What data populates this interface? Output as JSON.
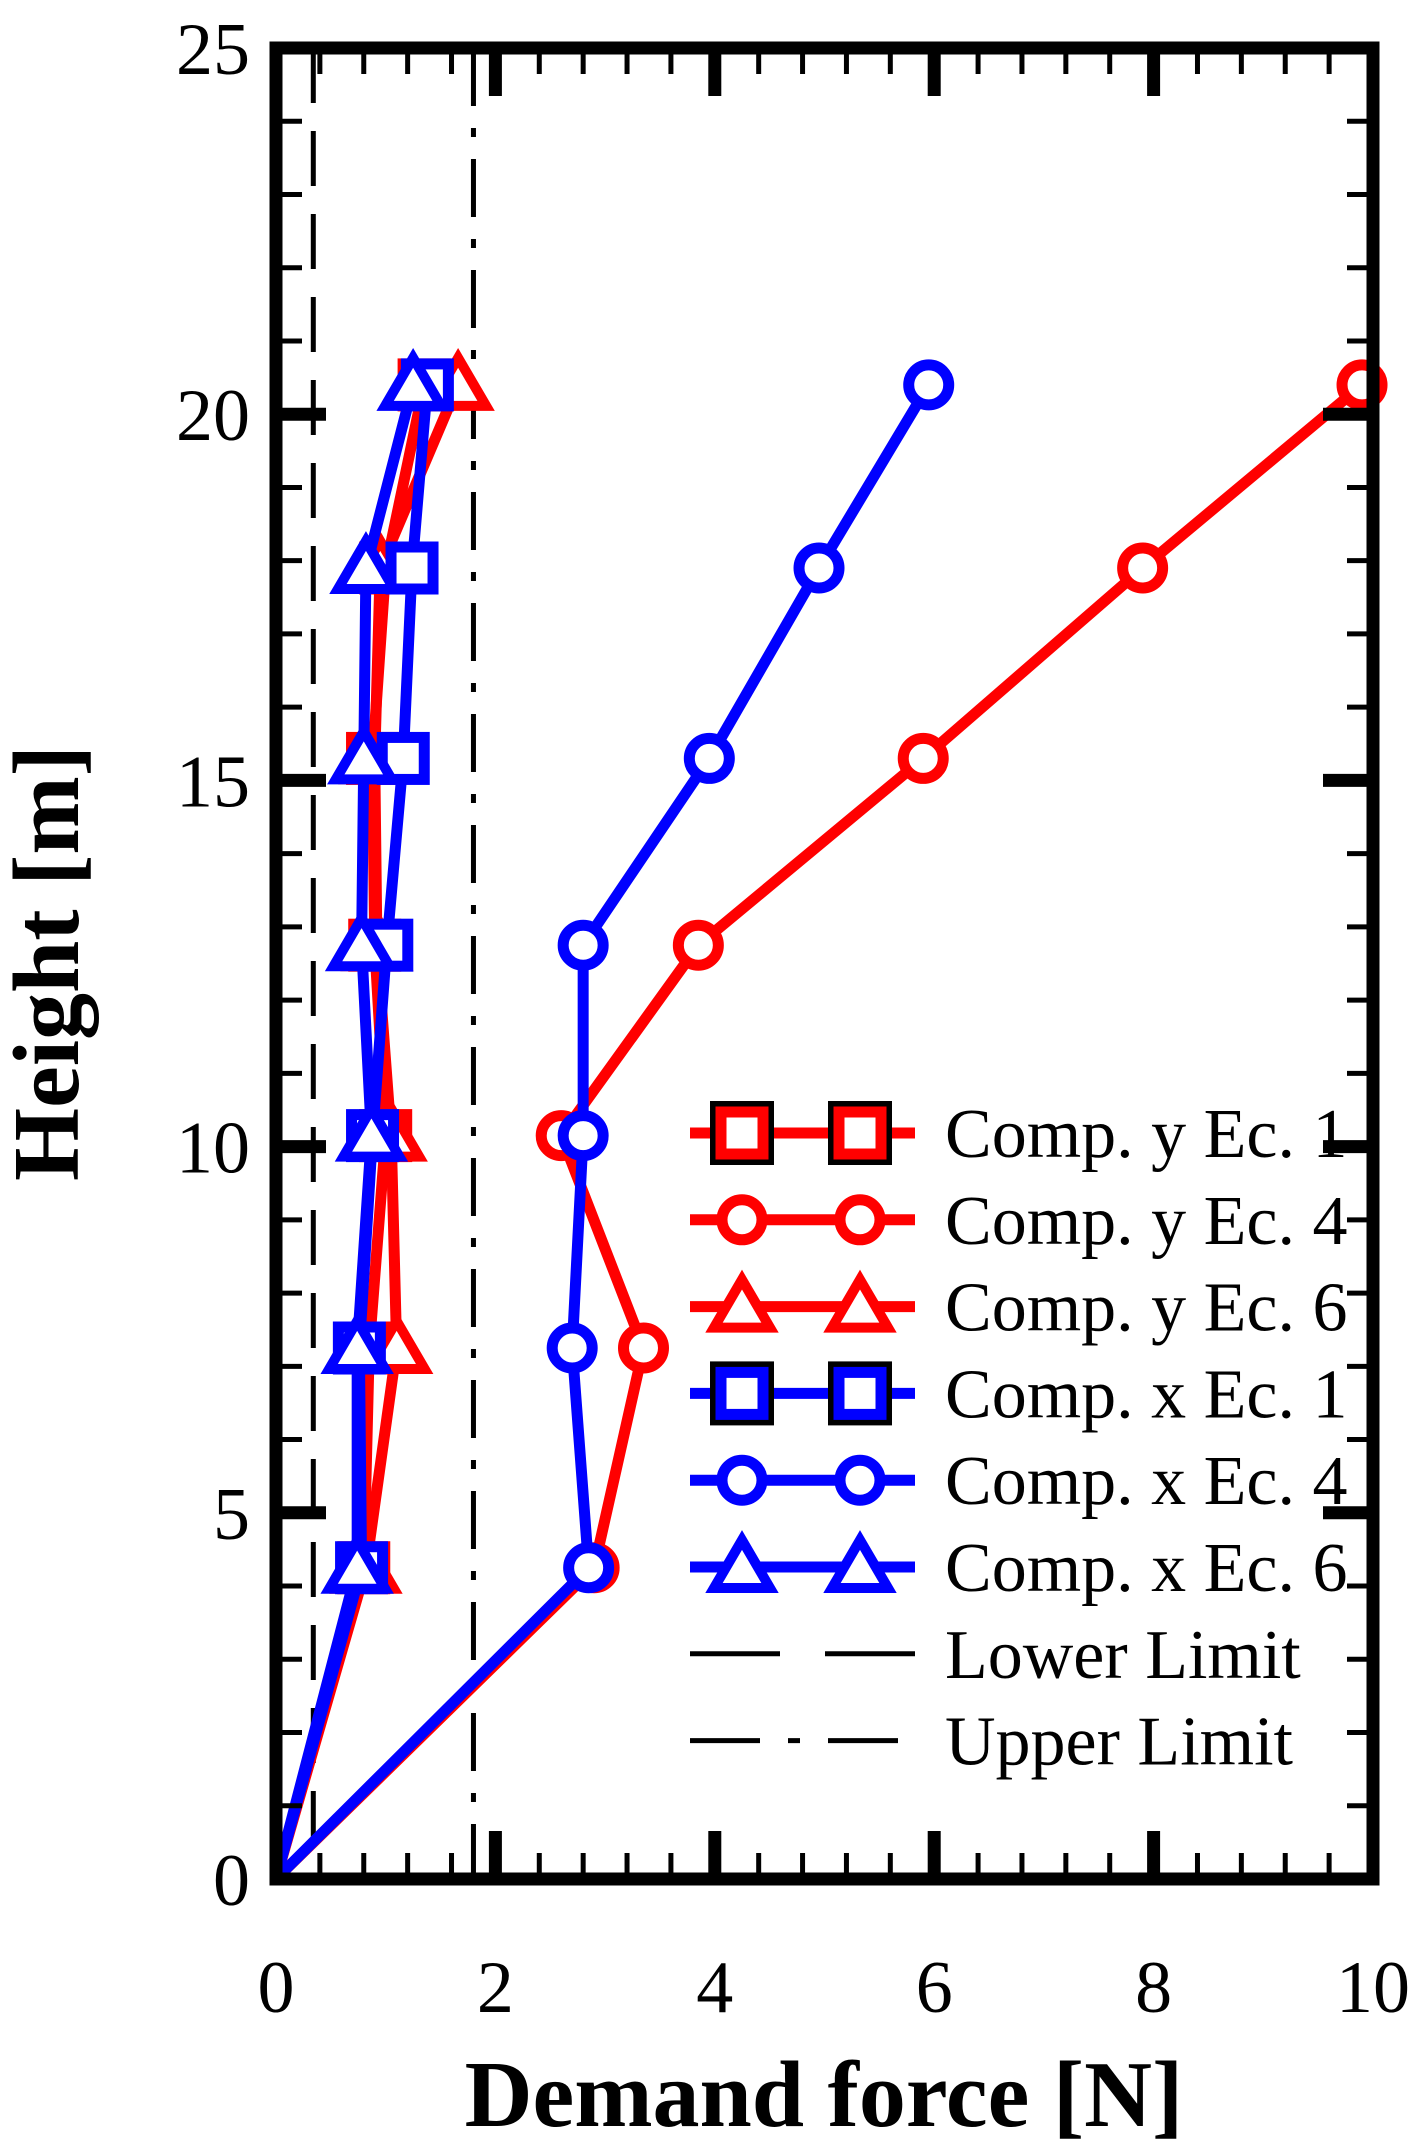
{
  "figure": {
    "background": "#ffffff",
    "frame_color": "#000000"
  },
  "chart_data": {
    "type": "line",
    "title": "",
    "xlabel": "Demand force [N]",
    "ylabel": "Height [m]",
    "xlim": [
      0,
      10
    ],
    "ylim": [
      0,
      25
    ],
    "x_major_ticks": [
      0,
      2,
      4,
      6,
      8,
      10
    ],
    "x_minor_step": 0.4,
    "y_major_ticks": [
      0,
      5,
      10,
      15,
      20,
      25
    ],
    "y_minor_step": 1,
    "grid": "off",
    "legend_position": "center-right-inside",
    "heights_m": [
      0,
      4.25,
      7.25,
      10.15,
      12.75,
      15.3,
      17.9,
      20.4
    ],
    "series": [
      {
        "name": "Comp. y Ec. 1",
        "color": "#ff0000",
        "marker": "square",
        "legend_marker_edge": "#000000",
        "values": [
          0,
          0.8,
          0.85,
          1.0,
          0.9,
          0.88,
          1.0,
          1.35
        ]
      },
      {
        "name": "Comp. y Ec. 4",
        "color": "#ff0000",
        "marker": "circle",
        "values": [
          0,
          2.9,
          3.35,
          2.6,
          3.85,
          5.9,
          7.9,
          9.9
        ]
      },
      {
        "name": "Comp. y Ec. 6",
        "color": "#ff0000",
        "marker": "triangle",
        "values": [
          0,
          0.82,
          1.1,
          1.05,
          0.92,
          0.9,
          0.95,
          1.66
        ]
      },
      {
        "name": "Comp. x Ec. 1",
        "color": "#0000ff",
        "marker": "square",
        "legend_marker_edge": "#000000",
        "values": [
          0,
          0.78,
          0.76,
          0.88,
          1.01,
          1.16,
          1.24,
          1.38
        ]
      },
      {
        "name": "Comp. x Ec. 4",
        "color": "#0000ff",
        "marker": "circle",
        "values": [
          0,
          2.85,
          2.7,
          2.8,
          2.8,
          3.95,
          4.95,
          5.95
        ]
      },
      {
        "name": "Comp. x Ec. 6",
        "color": "#0000ff",
        "marker": "triangle",
        "values": [
          0,
          0.74,
          0.74,
          0.87,
          0.78,
          0.8,
          0.82,
          1.25
        ]
      }
    ],
    "reference_lines": [
      {
        "name": "Lower Limit",
        "x": 0.34,
        "style": "dashed",
        "color": "#000000"
      },
      {
        "name": "Upper Limit",
        "x": 1.8,
        "style": "dashdot",
        "color": "#000000"
      }
    ]
  }
}
